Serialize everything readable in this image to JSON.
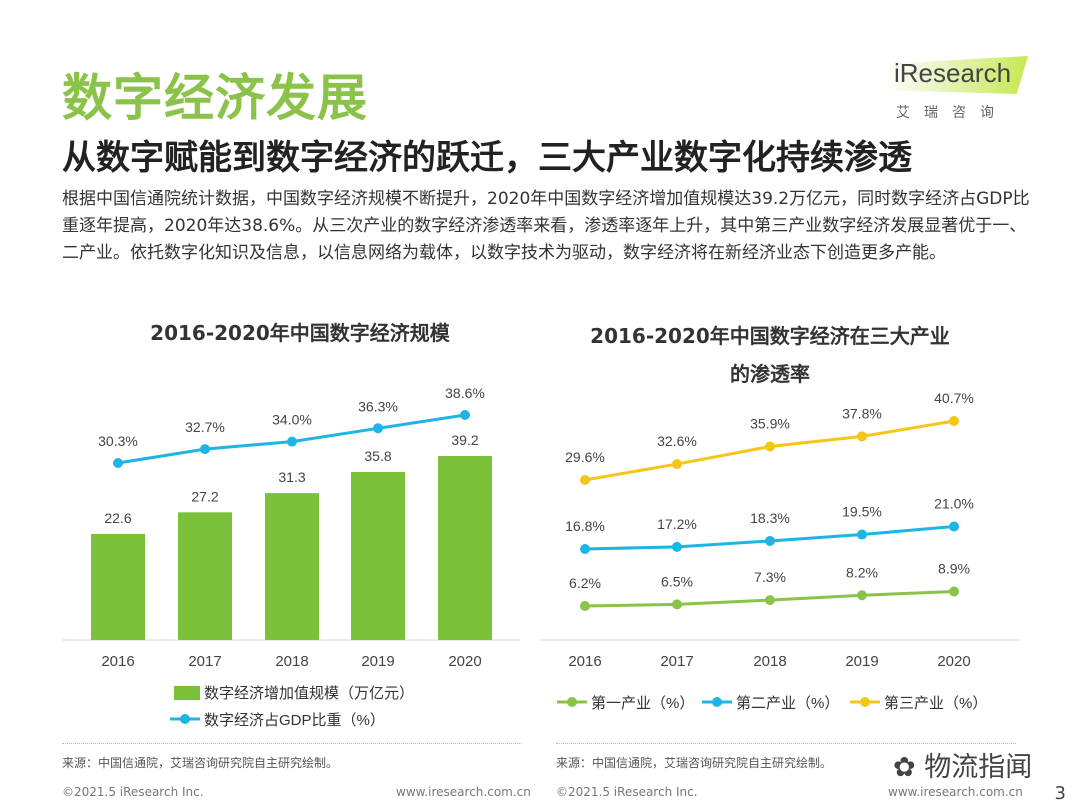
{
  "page": {
    "title": "数字经济发展",
    "subtitle": "从数字赋能到数字经济的跃迁，三大产业数字化持续渗透",
    "body": "根据中国信通院统计数据，中国数字经济规模不断提升，2020年中国数字经济增加值规模达39.2万亿元，同时数字经济占GDP比重逐年提高，2020年达38.6%。从三次产业的数字经济渗透率来看，渗透率逐年上升，其中第三产业数字经济发展显著优于一、二产业。依托数字化知识及信息，以信息网络为载体，以数字技术为驱动，数字经济将在新经济业态下创造更多产能。",
    "source_left": "来源：中国信通院，艾瑞咨询研究院自主研究绘制。",
    "source_right": "来源：中国信通院，艾瑞咨询研究院自主研究绘制。",
    "copyright_left": "©2021.5 iResearch Inc.",
    "website_left": "www.iresearch.com.cn",
    "copyright_right": "©2021.5 iResearch Inc.",
    "website_right": "www.iresearch.com.cn",
    "wechat_label": "物流指闻",
    "page_number": "3"
  },
  "logo": {
    "wordmark": "iResearch",
    "sub": "艾瑞咨询"
  },
  "colors": {
    "green": "#8bc34a",
    "bar_green": "#7cc13a",
    "blue": "#1eb4e6",
    "yellow": "#f5c518",
    "title_green": "#8bc34a"
  },
  "chart_data": [
    {
      "type": "bar",
      "title": "2016-2020年中国数字经济规模",
      "categories": [
        "2016",
        "2017",
        "2018",
        "2019",
        "2020"
      ],
      "series": [
        {
          "name": "数字经济增加值规模（万亿元）",
          "type": "bar",
          "values": [
            22.6,
            27.2,
            31.3,
            35.8,
            39.2
          ],
          "labels": [
            "22.6",
            "27.2",
            "31.3",
            "35.8",
            "39.2"
          ],
          "color": "#7cc13a"
        },
        {
          "name": "数字经济占GDP比重（%）",
          "type": "line",
          "values": [
            30.3,
            32.7,
            34.0,
            36.3,
            38.6
          ],
          "labels": [
            "30.3%",
            "32.7%",
            "34.0%",
            "36.3%",
            "38.6%"
          ],
          "color": "#1eb4e6"
        }
      ],
      "legend": "bottom"
    },
    {
      "type": "line",
      "title": "2016-2020年中国数字经济在三大产业的渗透率",
      "title_line1": "2016-2020年中国数字经济在三大产业",
      "title_line2": "的渗透率",
      "categories": [
        "2016",
        "2017",
        "2018",
        "2019",
        "2020"
      ],
      "series": [
        {
          "name": "第一产业（%）",
          "values": [
            6.2,
            6.5,
            7.3,
            8.2,
            8.9
          ],
          "labels": [
            "6.2%",
            "6.5%",
            "7.3%",
            "8.2%",
            "8.9%"
          ],
          "color": "#8bc34a"
        },
        {
          "name": "第二产业（%）",
          "values": [
            16.8,
            17.2,
            18.3,
            19.5,
            21.0
          ],
          "labels": [
            "16.8%",
            "17.2%",
            "18.3%",
            "19.5%",
            "21.0%"
          ],
          "color": "#1eb4e6"
        },
        {
          "name": "第三产业（%）",
          "values": [
            29.6,
            32.6,
            35.9,
            37.8,
            40.7
          ],
          "labels": [
            "29.6%",
            "32.6%",
            "35.9%",
            "37.8%",
            "40.7%"
          ],
          "color": "#f5c518"
        }
      ],
      "legend": "bottom"
    }
  ]
}
